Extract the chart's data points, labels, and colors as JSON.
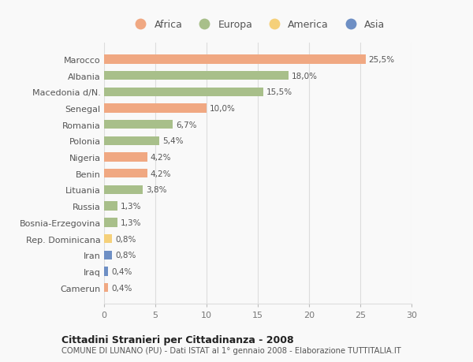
{
  "countries": [
    "Marocco",
    "Albania",
    "Macedonia d/N.",
    "Senegal",
    "Romania",
    "Polonia",
    "Nigeria",
    "Benin",
    "Lituania",
    "Russia",
    "Bosnia-Erzegovina",
    "Rep. Dominicana",
    "Iran",
    "Iraq",
    "Camerun"
  ],
  "values": [
    25.5,
    18.0,
    15.5,
    10.0,
    6.7,
    5.4,
    4.2,
    4.2,
    3.8,
    1.3,
    1.3,
    0.8,
    0.8,
    0.4,
    0.4
  ],
  "labels": [
    "25,5%",
    "18,0%",
    "15,5%",
    "10,0%",
    "6,7%",
    "5,4%",
    "4,2%",
    "4,2%",
    "3,8%",
    "1,3%",
    "1,3%",
    "0,8%",
    "0,8%",
    "0,4%",
    "0,4%"
  ],
  "continents": [
    "Africa",
    "Europa",
    "Europa",
    "Africa",
    "Europa",
    "Europa",
    "Africa",
    "Africa",
    "Europa",
    "Europa",
    "Europa",
    "America",
    "Asia",
    "Asia",
    "Africa"
  ],
  "colors": {
    "Africa": "#F0A882",
    "Europa": "#A8BF8A",
    "America": "#F5D07A",
    "Asia": "#6E8FC4"
  },
  "legend_order": [
    "Africa",
    "Europa",
    "America",
    "Asia"
  ],
  "xlim": [
    0,
    30
  ],
  "xticks": [
    0,
    5,
    10,
    15,
    20,
    25,
    30
  ],
  "title": "Cittadini Stranieri per Cittadinanza - 2008",
  "subtitle": "COMUNE DI LUNANO (PU) - Dati ISTAT al 1° gennaio 2008 - Elaborazione TUTTITALIA.IT",
  "background_color": "#f9f9f9",
  "grid_color": "#dddddd"
}
